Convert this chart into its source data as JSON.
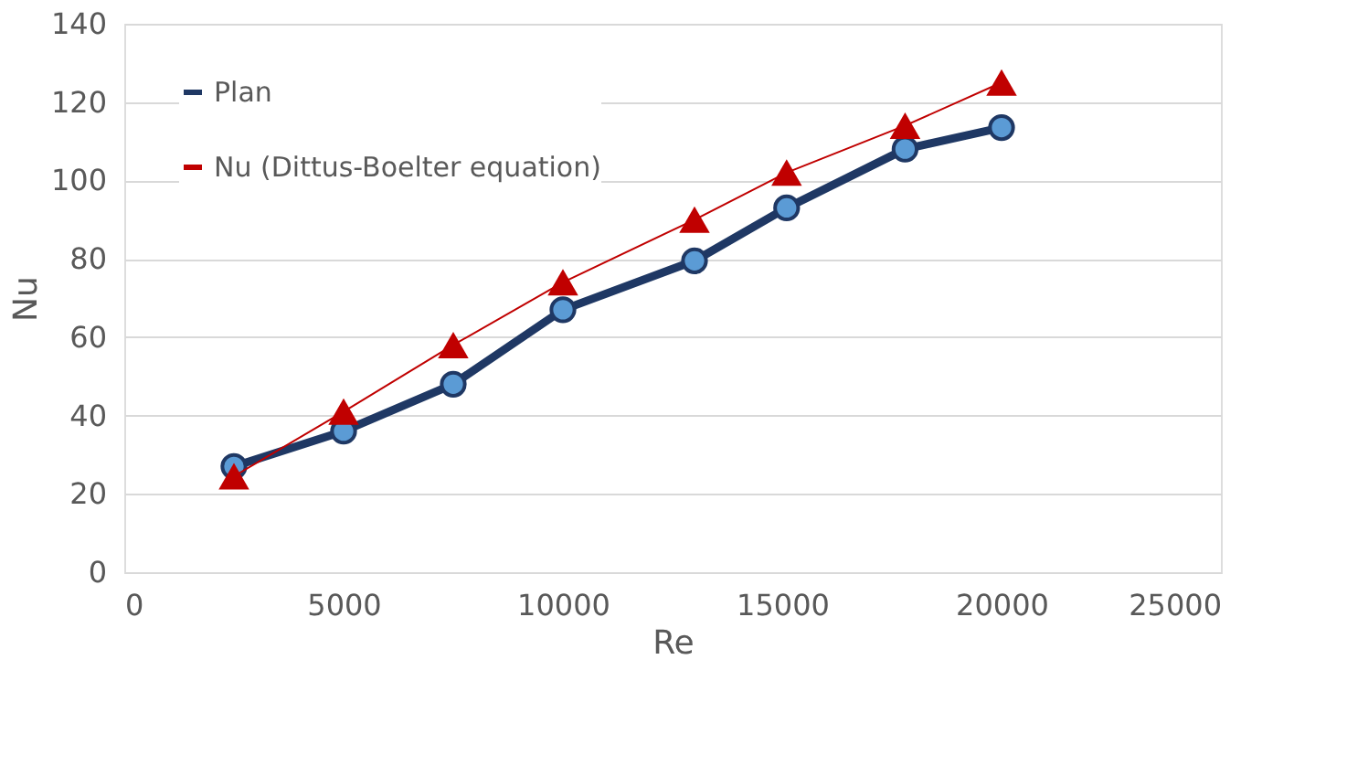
{
  "chart_data": {
    "type": "line",
    "xlabel": "Re",
    "ylabel": "Nu",
    "x": [
      2500,
      5000,
      7500,
      10000,
      13000,
      15100,
      17800,
      20000
    ],
    "series": [
      {
        "name": "Plan",
        "color": "#1f3864",
        "marker": "circle",
        "values": [
          27,
          36,
          48,
          67,
          79.5,
          93,
          108,
          113.5
        ]
      },
      {
        "name": "Nu (Dittus-Boelter equation)",
        "color": "#c00000",
        "marker": "triangle",
        "values": [
          24.5,
          41,
          58,
          74,
          90,
          102,
          114,
          125
        ]
      }
    ],
    "xlim": [
      0,
      25000
    ],
    "xticks": [
      0,
      5000,
      10000,
      15000,
      20000,
      25000
    ],
    "ylim": [
      0,
      140
    ],
    "yticks": [
      0,
      20,
      40,
      60,
      80,
      100,
      120,
      140
    ],
    "grid": "y",
    "legend": "top left"
  }
}
